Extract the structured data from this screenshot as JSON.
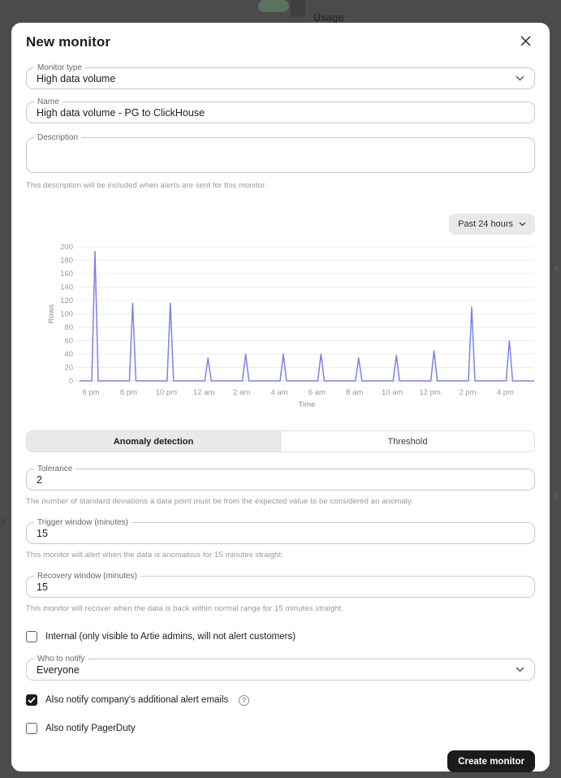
{
  "overlay": {
    "page_title": "Usage",
    "left_edge_text": "h",
    "right_edge_text": "E"
  },
  "modal": {
    "title": "New monitor",
    "fields": {
      "monitor_type": {
        "label": "Monitor type",
        "value": "High data volume"
      },
      "name": {
        "label": "Name",
        "value": "High data volume - PG to ClickHouse"
      },
      "description": {
        "label": "Description",
        "value": "",
        "helper": "This description will be included when alerts are sent for this monitor."
      }
    },
    "time_range_button": {
      "label": "Past 24 hours"
    },
    "tabs": [
      {
        "label": "Anomaly detection",
        "selected": true
      },
      {
        "label": "Threshold",
        "selected": false
      }
    ],
    "anomaly": {
      "tolerance": {
        "label": "Tolerance",
        "value": "2",
        "helper": "The number of standard deviations a data point must be from the expected value to be considered an anomaly."
      },
      "trigger_window": {
        "label": "Trigger window (minutes)",
        "value": "15",
        "helper": "This monitor will alert when the data is anomalous for 15 minutes straight."
      },
      "recovery_window": {
        "label": "Recovery window (minutes)",
        "value": "15",
        "helper": "This monitor will recover when the data is back within normal range for 15 minutes straight."
      }
    },
    "notifications": {
      "internal_checkbox": {
        "label": "Internal (only visible to Artie admins, will not alert customers)",
        "checked": false
      },
      "who_to_notify": {
        "label": "Who to notify",
        "value": "Everyone"
      },
      "additional_emails_checkbox": {
        "label": "Also notify company's additional alert emails",
        "checked": true
      },
      "pagerduty_checkbox": {
        "label": "Also notify PagerDuty",
        "checked": false
      }
    },
    "submit_button": {
      "label": "Create monitor"
    }
  },
  "chart_data": {
    "type": "line",
    "title": "",
    "xlabel": "Time",
    "ylabel": "Rows",
    "ylim": [
      0,
      200
    ],
    "ytick_step": 20,
    "categories": [
      "6 pm",
      "8 pm",
      "10 pm",
      "12 am",
      "2 am",
      "4 am",
      "6 am",
      "8 am",
      "10 am",
      "12 pm",
      "2 pm",
      "4 pm"
    ],
    "values": [
      193,
      116,
      116,
      34,
      40,
      40,
      40,
      34,
      38,
      45,
      110,
      60
    ],
    "note": "Spiky time series: value is 0 between spikes; each spike occurs just after the labeled 2-hour tick.",
    "line_color": "#7b82e8",
    "grid": true,
    "legend": false
  }
}
